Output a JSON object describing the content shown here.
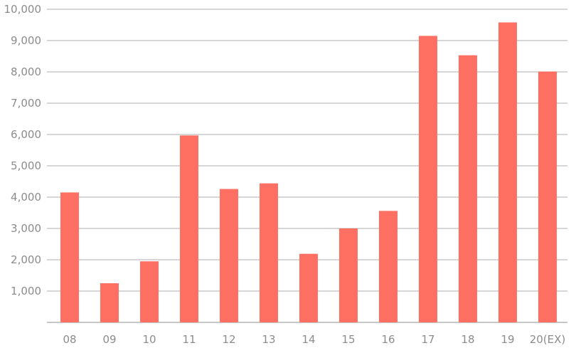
{
  "chart_data": {
    "type": "bar",
    "categories": [
      "08",
      "09",
      "10",
      "11",
      "12",
      "13",
      "14",
      "15",
      "16",
      "17",
      "18",
      "19",
      "20(EX)"
    ],
    "values": [
      4150,
      1250,
      1950,
      5970,
      4260,
      4440,
      2190,
      3000,
      3560,
      9150,
      8530,
      9580,
      8010
    ],
    "ylim": [
      0,
      10000
    ],
    "yticks": [
      0,
      1000,
      2000,
      3000,
      4000,
      5000,
      6000,
      7000,
      8000,
      9000,
      10000
    ],
    "ytick_labels": [
      "",
      "1,000",
      "2,000",
      "3,000",
      "4,000",
      "5,000",
      "6,000",
      "7,000",
      "8,000",
      "9,000",
      "10,000"
    ],
    "grid": true,
    "legend": "none",
    "bar_color": "#ff7062",
    "title": "",
    "xlabel": "",
    "ylabel": ""
  }
}
